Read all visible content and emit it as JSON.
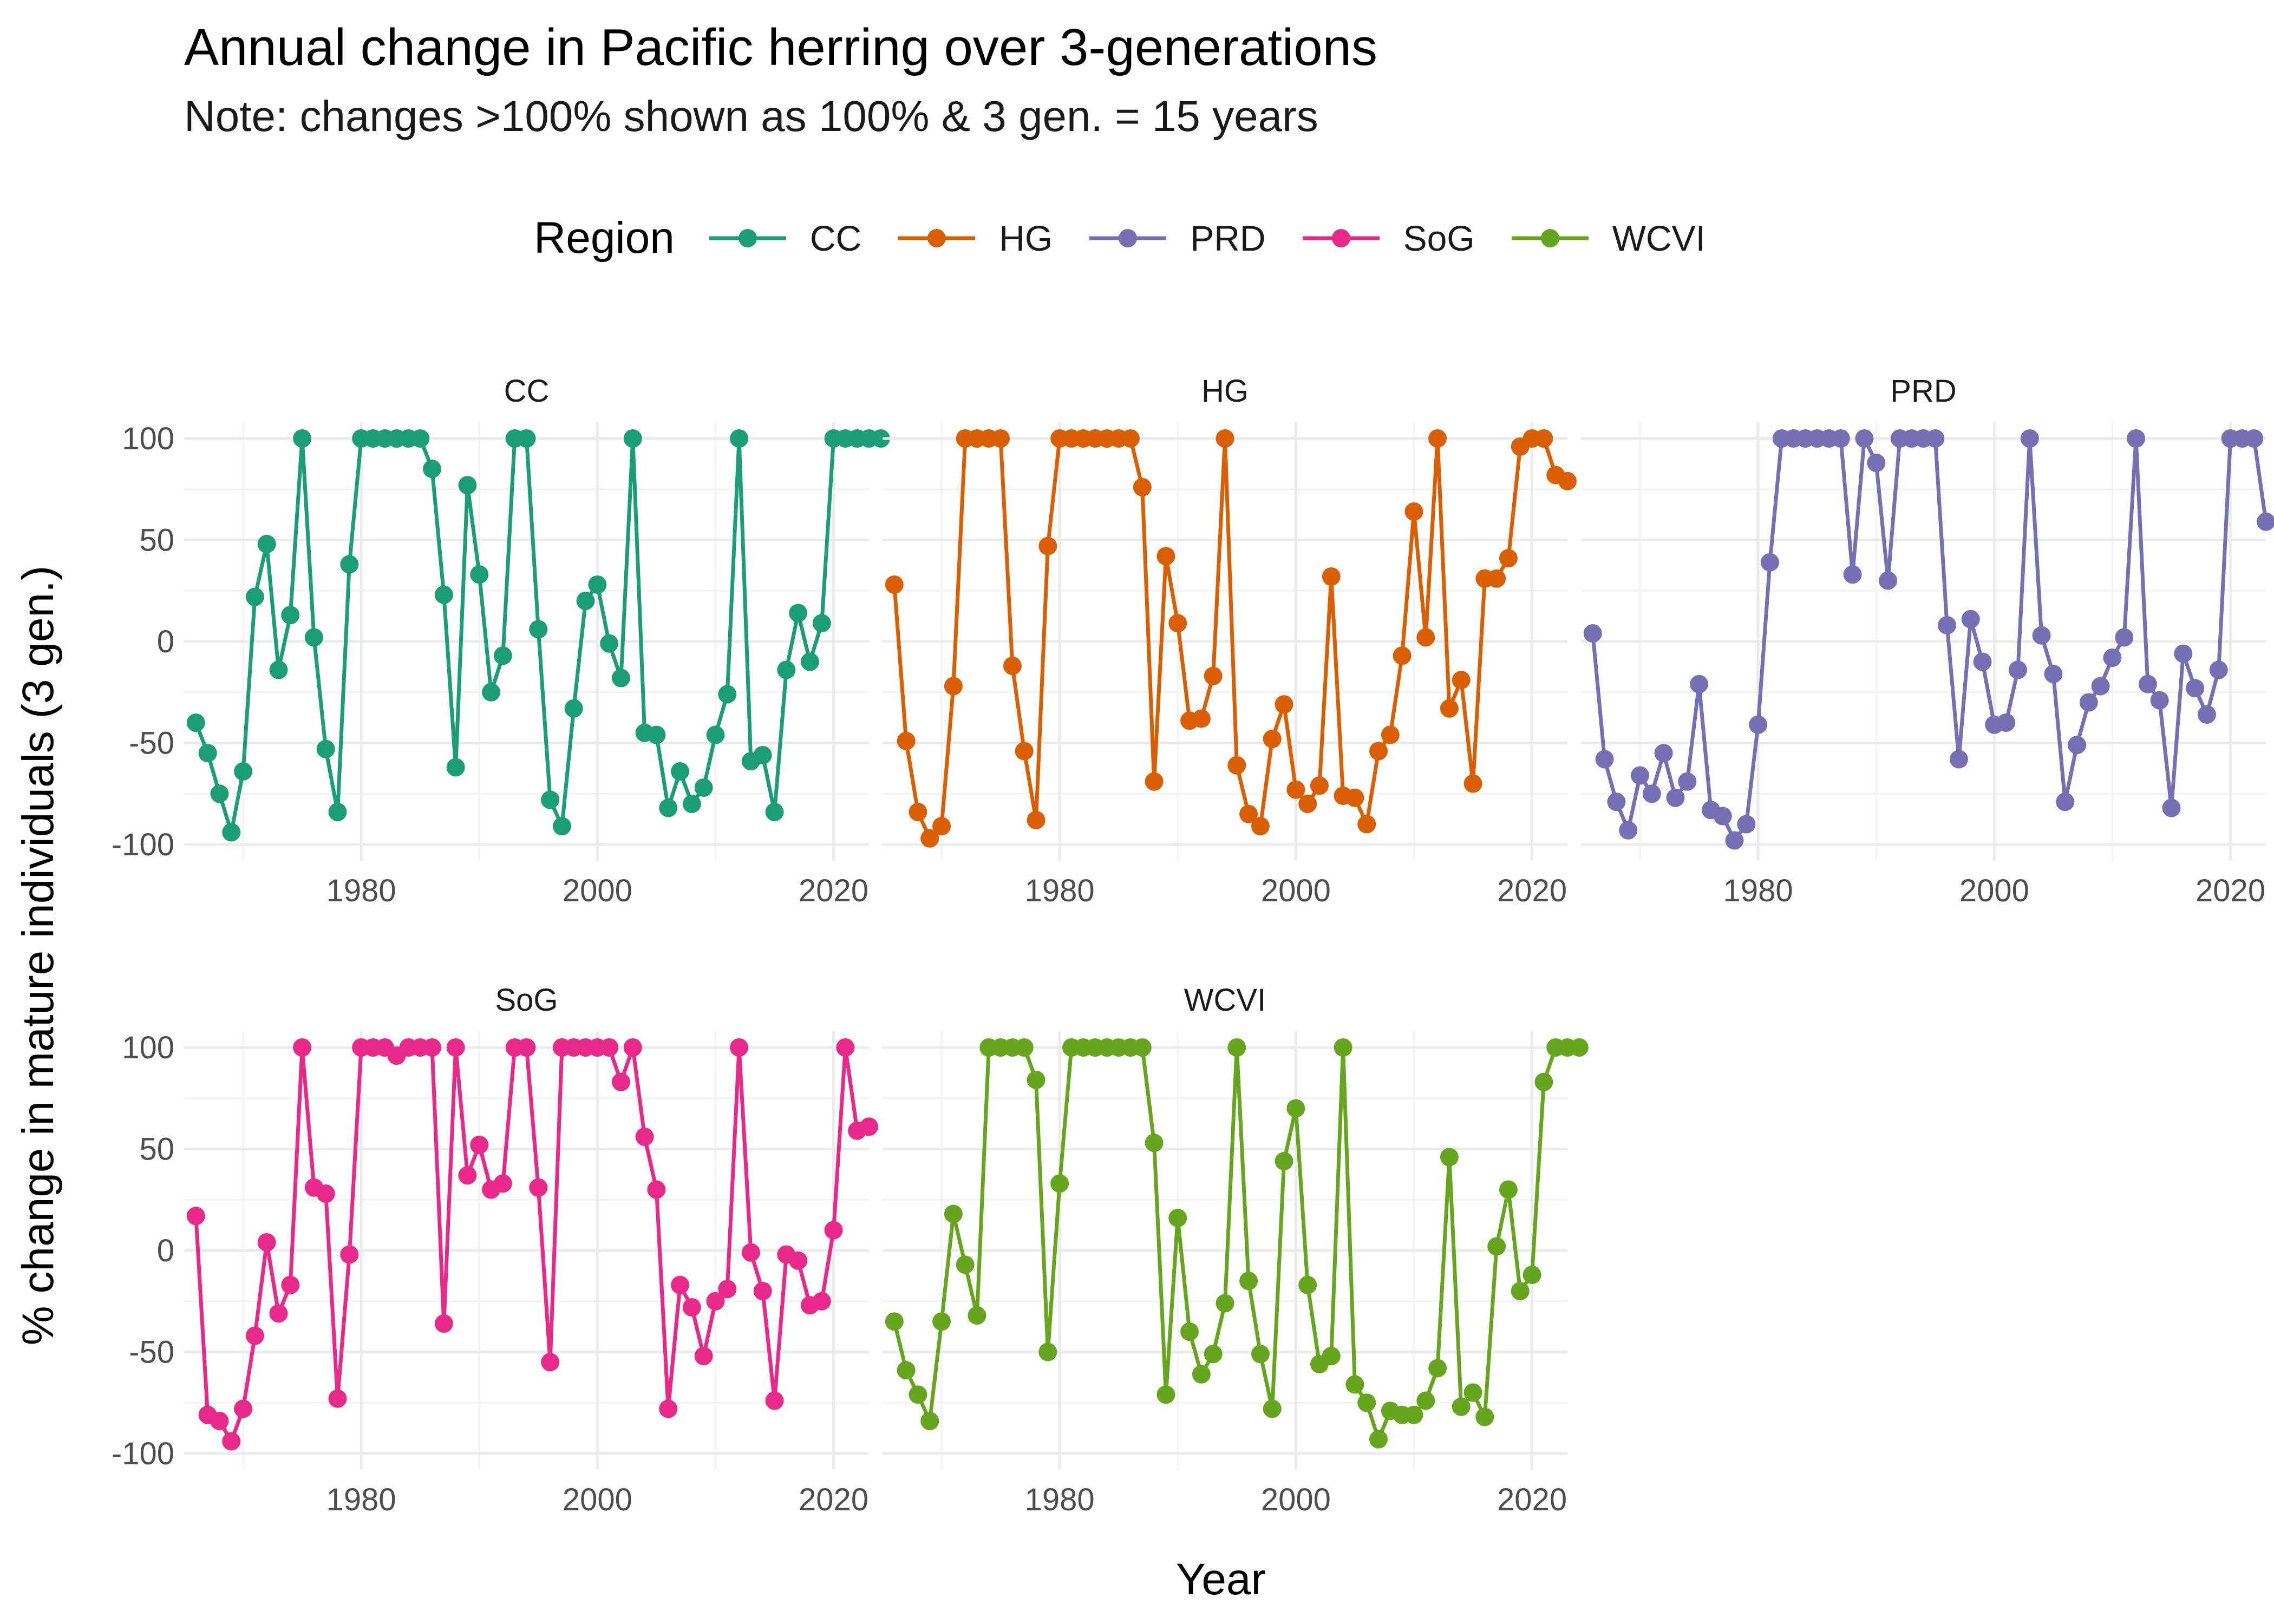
{
  "header": {
    "title": "Annual change in Pacific herring over 3-generations",
    "subtitle": "Note: changes >100% shown as 100% & 3 gen. = 15 years"
  },
  "legend": {
    "title": "Region",
    "items": [
      {
        "label": "CC",
        "color": "#1B9E77"
      },
      {
        "label": "HG",
        "color": "#D95F02"
      },
      {
        "label": "PRD",
        "color": "#7570B3"
      },
      {
        "label": "SoG",
        "color": "#E7298A"
      },
      {
        "label": "WCVI",
        "color": "#66A61E"
      }
    ]
  },
  "chart_data": {
    "type": "line",
    "xlabel": "Year",
    "ylabel": "% change in mature individuals (3 gen.)",
    "xlim": [
      1965,
      2023
    ],
    "ylim": [
      -100,
      100
    ],
    "x_ticks": [
      1980,
      2000,
      2020
    ],
    "y_ticks": [
      -100,
      -50,
      0,
      50,
      100
    ],
    "grid": true,
    "legend_position": "top",
    "facets": [
      "CC",
      "HG",
      "PRD",
      "SoG",
      "WCVI"
    ],
    "series": [
      {
        "name": "CC",
        "color": "#1B9E77",
        "start_year": 1966,
        "values": [
          -40,
          -55,
          -75,
          -94,
          -64,
          22,
          48,
          -14,
          13,
          100,
          2,
          -53,
          -84,
          38,
          100,
          100,
          100,
          100,
          100,
          100,
          85,
          23,
          -62,
          77,
          33,
          -25,
          -7,
          100,
          100,
          6,
          -78,
          -91,
          -33,
          20,
          28,
          -1,
          -18,
          100,
          -45,
          -46,
          -82,
          -64,
          -80,
          -72,
          -46,
          -26,
          100,
          -59,
          -56,
          -84,
          -14,
          14,
          -10,
          9,
          100,
          100,
          100,
          100,
          100
        ]
      },
      {
        "name": "HG",
        "color": "#D95F02",
        "start_year": 1966,
        "values": [
          28,
          -49,
          -84,
          -97,
          -91,
          -22,
          100,
          100,
          100,
          100,
          -12,
          -54,
          -88,
          47,
          100,
          100,
          100,
          100,
          100,
          100,
          100,
          76,
          -69,
          42,
          9,
          -39,
          -38,
          -17,
          100,
          -61,
          -85,
          -91,
          -48,
          -31,
          -73,
          -80,
          -71,
          32,
          -76,
          -77,
          -90,
          -54,
          -46,
          -7,
          64,
          2,
          100,
          -33,
          -19,
          -70,
          31,
          31,
          41,
          96,
          100,
          100,
          82,
          79
        ]
      },
      {
        "name": "PRD",
        "color": "#7570B3",
        "start_year": 1966,
        "values": [
          4,
          -58,
          -79,
          -93,
          -66,
          -75,
          -55,
          -77,
          -69,
          -21,
          -83,
          -86,
          -98,
          -90,
          -41,
          39,
          100,
          100,
          100,
          100,
          100,
          100,
          33,
          100,
          88,
          30,
          100,
          100,
          100,
          100,
          8,
          -58,
          11,
          -10,
          -41,
          -40,
          -14,
          100,
          3,
          -16,
          -79,
          -51,
          -30,
          -22,
          -8,
          2,
          100,
          -21,
          -29,
          -82,
          -6,
          -23,
          -36,
          -14,
          100,
          100,
          100,
          59
        ]
      },
      {
        "name": "SoG",
        "color": "#E7298A",
        "start_year": 1966,
        "values": [
          17,
          -81,
          -84,
          -94,
          -78,
          -42,
          4,
          -31,
          -17,
          100,
          31,
          28,
          -73,
          -2,
          100,
          100,
          100,
          96,
          100,
          100,
          100,
          -36,
          100,
          37,
          52,
          30,
          33,
          100,
          100,
          31,
          -55,
          100,
          100,
          100,
          100,
          100,
          83,
          100,
          56,
          30,
          -78,
          -17,
          -28,
          -52,
          -25,
          -19,
          100,
          -1,
          -20,
          -74,
          -2,
          -5,
          -27,
          -25,
          10,
          100,
          59,
          61
        ]
      },
      {
        "name": "WCVI",
        "color": "#66A61E",
        "start_year": 1966,
        "values": [
          -35,
          -59,
          -71,
          -84,
          -35,
          18,
          -7,
          -32,
          100,
          100,
          100,
          100,
          84,
          -50,
          33,
          100,
          100,
          100,
          100,
          100,
          100,
          100,
          53,
          -71,
          16,
          -40,
          -61,
          -51,
          -26,
          100,
          -15,
          -51,
          -78,
          44,
          70,
          -17,
          -56,
          -52,
          100,
          -66,
          -75,
          -93,
          -79,
          -81,
          -81,
          -74,
          -58,
          46,
          -77,
          -70,
          -82,
          2,
          30,
          -20,
          -12,
          83,
          100,
          100,
          100
        ]
      }
    ]
  }
}
